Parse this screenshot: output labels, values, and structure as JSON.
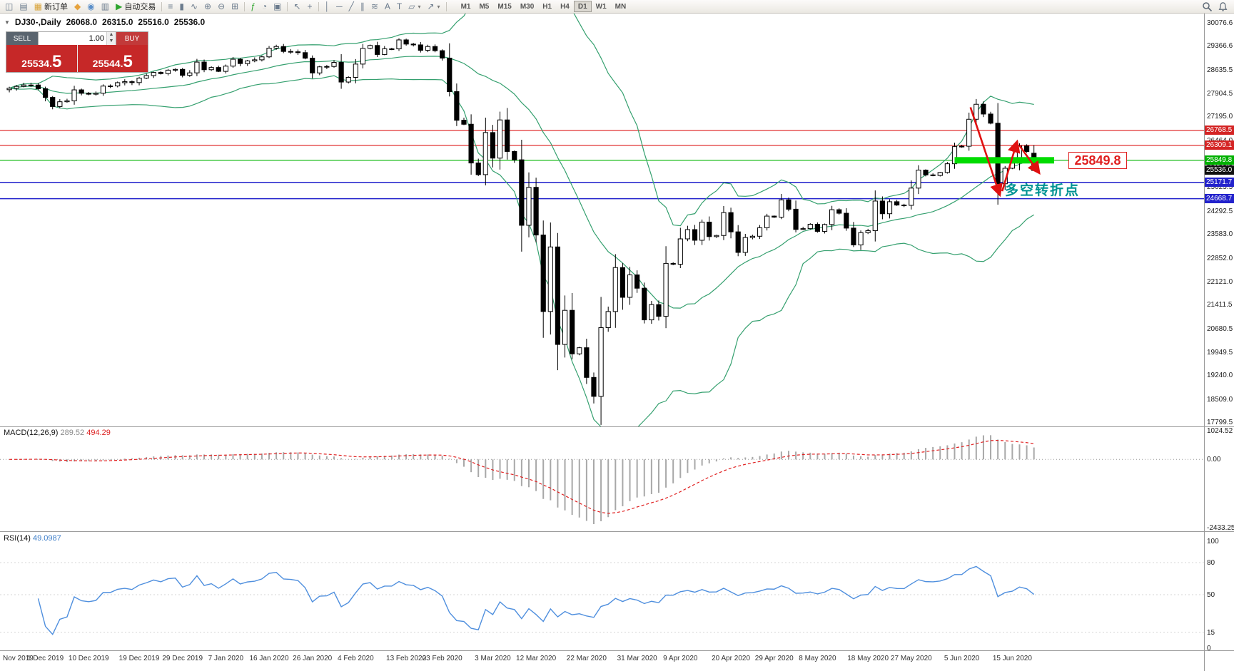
{
  "toolbar": {
    "items": [
      {
        "type": "icon",
        "name": "new-chart-icon",
        "glyph": "◫"
      },
      {
        "type": "icon",
        "name": "profiles-icon",
        "glyph": "▤"
      },
      {
        "type": "button",
        "name": "new-order-button",
        "glyph": "▦",
        "label": "新订单",
        "icon_color": "#d9a43b"
      },
      {
        "type": "icon",
        "name": "mql5-icon",
        "glyph": "◆",
        "color": "#e6a23c"
      },
      {
        "type": "icon",
        "name": "community-icon",
        "glyph": "◉",
        "color": "#5b8fc9"
      },
      {
        "type": "icon",
        "name": "data-window-icon",
        "glyph": "▥"
      },
      {
        "type": "button",
        "name": "autotrading-button",
        "glyph": "▶",
        "label": "自动交易",
        "icon_color": "#2ea52e"
      },
      {
        "type": "sep"
      },
      {
        "type": "icon",
        "name": "bar-chart-icon",
        "glyph": "≡"
      },
      {
        "type": "icon",
        "name": "candlestick-chart-icon",
        "glyph": "▮"
      },
      {
        "type": "icon",
        "name": "line-chart-icon",
        "glyph": "∿"
      },
      {
        "type": "icon",
        "name": "zoom-in-icon",
        "glyph": "⊕"
      },
      {
        "type": "icon",
        "name": "zoom-out-icon",
        "glyph": "⊖"
      },
      {
        "type": "icon",
        "name": "tile-windows-icon",
        "glyph": "⊞"
      },
      {
        "type": "sep"
      },
      {
        "type": "icon",
        "name": "indicators-icon",
        "glyph": "ƒ",
        "color": "#2ea52e"
      },
      {
        "type": "icon",
        "name": "periods-icon",
        "glyph": "◔"
      },
      {
        "type": "icon",
        "name": "templates-icon",
        "glyph": "▣"
      },
      {
        "type": "sep"
      },
      {
        "type": "icon",
        "name": "cursor-icon",
        "glyph": "↖"
      },
      {
        "type": "icon",
        "name": "crosshair-icon",
        "glyph": "+"
      },
      {
        "type": "sep"
      },
      {
        "type": "icon",
        "name": "vertical-line-icon",
        "glyph": "│"
      },
      {
        "type": "icon",
        "name": "horizontal-line-icon",
        "glyph": "─"
      },
      {
        "type": "icon",
        "name": "trendline-icon",
        "glyph": "╱"
      },
      {
        "type": "icon",
        "name": "channel-icon",
        "glyph": "∥"
      },
      {
        "type": "icon",
        "name": "fibonacci-icon",
        "glyph": "≋"
      },
      {
        "type": "icon",
        "name": "text-icon",
        "glyph": "A"
      },
      {
        "type": "icon",
        "name": "label-icon",
        "glyph": "T"
      },
      {
        "type": "icon",
        "name": "shapes-icon",
        "glyph": "▱",
        "dropdown": true
      },
      {
        "type": "icon",
        "name": "arrows-icon",
        "glyph": "↗",
        "dropdown": true
      },
      {
        "type": "sep"
      },
      {
        "type": "timeframes"
      }
    ],
    "timeframes": [
      "M1",
      "M5",
      "M15",
      "M30",
      "H1",
      "H4",
      "D1",
      "W1",
      "MN"
    ],
    "active_timeframe": "D1",
    "right_icons": [
      {
        "name": "search-icon"
      },
      {
        "name": "notifications-icon"
      }
    ]
  },
  "chart_header": {
    "symbol_period": "DJ30-,Daily",
    "open": "26068.0",
    "high": "26315.0",
    "low": "25516.0",
    "close": "25536.0"
  },
  "trade_panel": {
    "sell_label": "SELL",
    "buy_label": "BUY",
    "volume": "1.00",
    "sell_price": "25534.5",
    "buy_price": "25544.5",
    "panel_red": "#c62828"
  },
  "price_axis": [
    "30076.6",
    "29366.6",
    "28635.5",
    "27904.5",
    "27195.0",
    "26464.0",
    "25753.5",
    "25023.5",
    "24292.5",
    "23583.0",
    "22852.0",
    "22121.0",
    "21411.5",
    "20680.5",
    "19949.5",
    "19240.0",
    "18509.0",
    "17799.5"
  ],
  "levels": {
    "lines": [
      {
        "price": 26768.5,
        "color": "#e03030",
        "width": 1.2,
        "name": "resistance-line-26768"
      },
      {
        "price": 26309.1,
        "color": "#e03030",
        "width": 1.2,
        "name": "resistance-line-26309"
      },
      {
        "price": 25849.8,
        "color": "#00b400",
        "width": 1.2,
        "name": "green-level-line-25849"
      },
      {
        "price": 25171.7,
        "color": "#2222cc",
        "width": 1.5,
        "name": "support-line-25171"
      },
      {
        "price": 24668.7,
        "color": "#2222cc",
        "width": 1.5,
        "name": "support-line-24668"
      }
    ],
    "zone": {
      "price": 25849.8,
      "color": "#00dc00",
      "x1_index": 131.0,
      "x2_index": 144.8,
      "height": 9
    },
    "tags": [
      {
        "label": "26768.5",
        "price": 26768.5,
        "bg": "#d42424"
      },
      {
        "label": "26309.1",
        "price": 26309.1,
        "bg": "#d42424"
      },
      {
        "label": "25849.8",
        "price": 25849.8,
        "bg": "#00b000"
      },
      {
        "label": "25536.0",
        "price": 25536.0,
        "bg": "#101010"
      },
      {
        "label": "25171.7",
        "price": 25171.7,
        "bg": "#2222cc"
      },
      {
        "label": "24668.7",
        "price": 24668.7,
        "bg": "#2222cc"
      }
    ]
  },
  "annotations": {
    "price_callout": "25849.8",
    "turning_point_text": "多空转折点",
    "callout_color": "#e02020",
    "turning_point_color": "#009393",
    "arrow_color": "#e01010"
  },
  "macd_panel": {
    "label": "MACD(12,26,9)",
    "value_main": "289.52",
    "value_signal": "494.29",
    "axis": [
      "1024.52",
      "0.00",
      "-2433.25"
    ],
    "fast": 12,
    "slow": 26,
    "signal": 9,
    "histogram_color": "#a8a8a8",
    "signal_color": "#e02020"
  },
  "rsi_panel": {
    "label": "RSI(14)",
    "value": "49.0987",
    "axis": [
      100,
      80,
      50,
      15,
      0
    ],
    "period": 14,
    "line_color": "#4f8fde"
  },
  "time_axis": [
    {
      "label": "Nov 2019",
      "i": 0
    },
    {
      "label": "1 Dec 2019",
      "i": 5
    },
    {
      "label": "10 Dec 2019",
      "i": 11
    },
    {
      "label": "19 Dec 2019",
      "i": 18
    },
    {
      "label": "29 Dec 2019",
      "i": 24
    },
    {
      "label": "7 Jan 2020",
      "i": 30
    },
    {
      "label": "16 Jan 2020",
      "i": 36
    },
    {
      "label": "26 Jan 2020",
      "i": 42
    },
    {
      "label": "4 Feb 2020",
      "i": 48
    },
    {
      "label": "13 Feb 2020",
      "i": 55
    },
    {
      "label": "23 Feb 2020",
      "i": 60
    },
    {
      "label": "3 Mar 2020",
      "i": 67
    },
    {
      "label": "12 Mar 2020",
      "i": 73
    },
    {
      "label": "22 Mar 2020",
      "i": 80
    },
    {
      "label": "31 Mar 2020",
      "i": 87
    },
    {
      "label": "9 Apr 2020",
      "i": 93
    },
    {
      "label": "20 Apr 2020",
      "i": 100
    },
    {
      "label": "29 Apr 2020",
      "i": 106
    },
    {
      "label": "8 May 2020",
      "i": 112
    },
    {
      "label": "18 May 2020",
      "i": 119
    },
    {
      "label": "27 May 2020",
      "i": 125
    },
    {
      "label": "5 Jun 2020",
      "i": 132
    },
    {
      "label": "15 Jun 2020",
      "i": 139
    }
  ],
  "chart_data": {
    "type": "candlestick",
    "symbol": "DJ30",
    "timeframe": "Daily",
    "y_range": [
      17799.5,
      30076.6
    ],
    "overlays": [
      "Bollinger Bands (green)"
    ],
    "bollinger": {
      "period": 20,
      "deviation": 2,
      "color": "#35a06f"
    },
    "last_candle": {
      "open": 26068.0,
      "high": 26315.0,
      "low": 25516.0,
      "close": 25536.0
    },
    "closes": [
      28066,
      28121,
      28164,
      28164,
      28051,
      27783,
      27503,
      27650,
      27678,
      28015,
      27910,
      27882,
      27911,
      28132,
      28135,
      28236,
      28267,
      28239,
      28377,
      28455,
      28551,
      28515,
      28621,
      28645,
      28462,
      28538,
      28869,
      28635,
      28703,
      28584,
      28745,
      28957,
      28824,
      28907,
      28939,
      29030,
      29298,
      29348,
      29196,
      29186,
      29160,
      28990,
      28536,
      28723,
      28734,
      28859,
      28256,
      28400,
      28808,
      29291,
      29380,
      29103,
      29277,
      29276,
      29551,
      29423,
      29398,
      29232,
      29348,
      29220,
      28992,
      27961,
      27081,
      26958,
      25767,
      25409,
      26703,
      25917,
      27091,
      26121,
      25865,
      23851,
      25018,
      23553,
      21201,
      23186,
      20188,
      21237,
      19899,
      20087,
      19174,
      18592,
      20705,
      21200,
      22552,
      21637,
      22327,
      21917,
      20944,
      21413,
      21053,
      22680,
      22654,
      23434,
      23719,
      23391,
      23950,
      23504,
      23538,
      24242,
      23650,
      23018,
      23476,
      23515,
      23775,
      24134,
      24102,
      24634,
      24346,
      23724,
      23749,
      23883,
      23665,
      23876,
      24331,
      24222,
      23765,
      23248,
      23625,
      23685,
      24597,
      24207,
      24576,
      24474,
      24465,
      24995,
      25548,
      25401,
      25383,
      25475,
      25743,
      26270,
      26282,
      27111,
      27572,
      27272,
      26990,
      25128,
      25605,
      25763,
      26290,
      26120,
      25536
    ]
  }
}
